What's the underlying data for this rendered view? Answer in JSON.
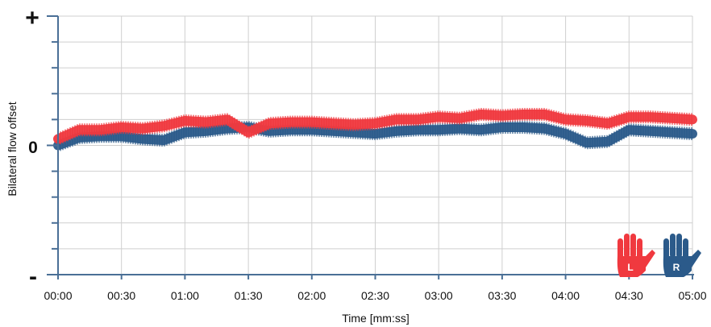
{
  "colors": {
    "left": "#f0393f",
    "right": "#2b5a8a",
    "grid": "#cfcfcf",
    "axis": "#4a6f96"
  },
  "icons": {
    "left": "left-hand-icon",
    "right": "right-hand-icon"
  },
  "chart_data": {
    "type": "line",
    "title": "",
    "xlabel": "Time [mm:ss]",
    "ylabel": "Bilateral flow offset",
    "x_unit": "seconds",
    "xlim": [
      0,
      300
    ],
    "ylim": [
      -1,
      1
    ],
    "x_tick_labels": [
      "00:00",
      "00:30",
      "01:00",
      "01:30",
      "02:00",
      "02:30",
      "03:00",
      "03:30",
      "04:00",
      "04:30",
      "05:00"
    ],
    "y_tick_labels": {
      "top": "+",
      "zero": "0",
      "bottom": "-"
    },
    "grid": true,
    "legend_position": "bottom-right",
    "legend_markers": [
      {
        "letter": "L",
        "icon": "left-hand-icon",
        "color": "#f0393f"
      },
      {
        "letter": "R",
        "icon": "right-hand-icon",
        "color": "#2b5a8a"
      }
    ],
    "series": [
      {
        "marker": "L",
        "color": "#f0393f",
        "x": [
          0,
          10,
          20,
          30,
          40,
          50,
          60,
          70,
          80,
          90,
          100,
          110,
          120,
          130,
          140,
          150,
          160,
          170,
          180,
          190,
          200,
          210,
          220,
          230,
          240,
          250,
          260,
          270,
          280,
          290,
          300
        ],
        "y": [
          0.05,
          0.12,
          0.12,
          0.14,
          0.13,
          0.15,
          0.19,
          0.18,
          0.2,
          0.1,
          0.17,
          0.18,
          0.18,
          0.17,
          0.16,
          0.17,
          0.2,
          0.2,
          0.22,
          0.21,
          0.24,
          0.23,
          0.24,
          0.24,
          0.2,
          0.19,
          0.17,
          0.22,
          0.22,
          0.21,
          0.2
        ]
      },
      {
        "marker": "R",
        "color": "#2b5a8a",
        "x": [
          0,
          10,
          20,
          30,
          40,
          50,
          60,
          70,
          80,
          90,
          100,
          110,
          120,
          130,
          140,
          150,
          160,
          170,
          180,
          190,
          200,
          210,
          220,
          230,
          240,
          250,
          260,
          270,
          280,
          290,
          300
        ],
        "y": [
          0.0,
          0.06,
          0.07,
          0.07,
          0.05,
          0.04,
          0.1,
          0.11,
          0.13,
          0.14,
          0.11,
          0.12,
          0.12,
          0.11,
          0.1,
          0.09,
          0.11,
          0.12,
          0.12,
          0.13,
          0.12,
          0.14,
          0.14,
          0.13,
          0.09,
          0.02,
          0.03,
          0.12,
          0.11,
          0.1,
          0.09
        ]
      }
    ]
  }
}
